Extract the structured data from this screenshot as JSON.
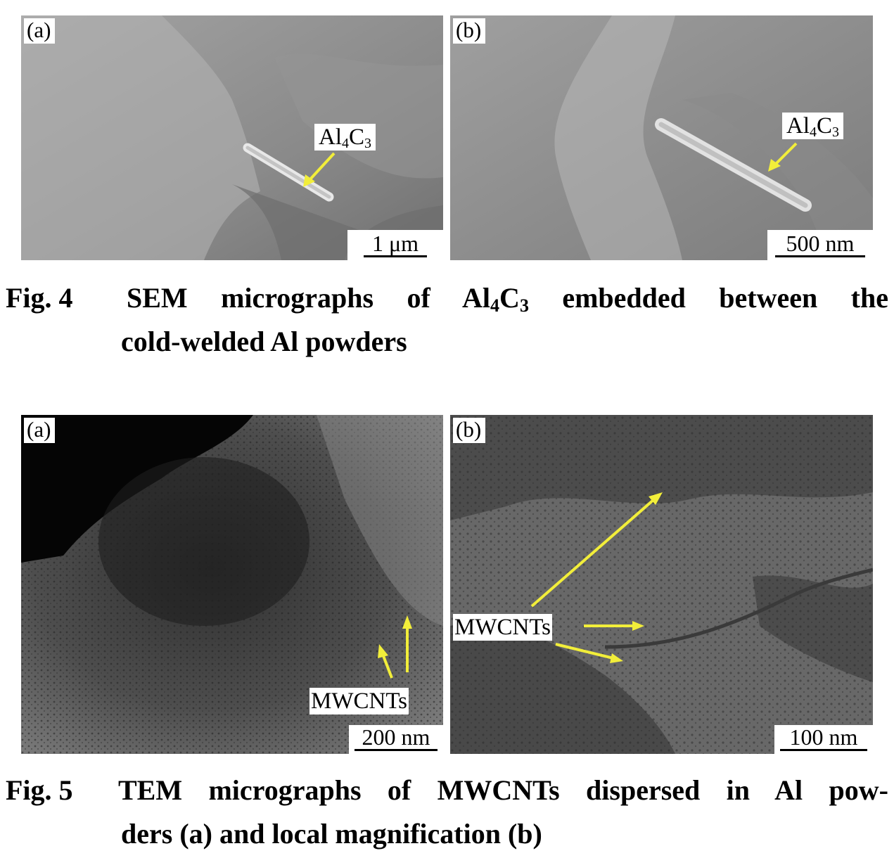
{
  "figure4": {
    "panel_a": {
      "letter": "(a)",
      "label_prefix": "Al",
      "label_sub1": "4",
      "label_mid": "C",
      "label_sub2": "3",
      "scale": "1 μm"
    },
    "panel_b": {
      "letter": "(b)",
      "label_prefix": "Al",
      "label_sub1": "4",
      "label_mid": "C",
      "label_sub2": "3",
      "scale": "500 nm"
    },
    "caption": {
      "number": "Fig. 4",
      "line1_pre": "SEM micrographs of Al",
      "sub1": "4",
      "mid": "C",
      "sub2": "3",
      "line1_post": " embedded between the",
      "line2": "cold-welded Al powders"
    }
  },
  "figure5": {
    "panel_a": {
      "letter": "(a)",
      "label": "MWCNTs",
      "scale": "200 nm"
    },
    "panel_b": {
      "letter": "(b)",
      "label": "MWCNTs",
      "scale": "100 nm"
    },
    "caption": {
      "number": "Fig. 5",
      "line1": "TEM micrographs of MWCNTs dispersed in Al pow-",
      "line2": "ders (a) and local magnification (b)"
    }
  },
  "colors": {
    "arrow": "#f2ee3a",
    "sem_bg": "#8d8d8d",
    "tem_bg": "#575757"
  }
}
